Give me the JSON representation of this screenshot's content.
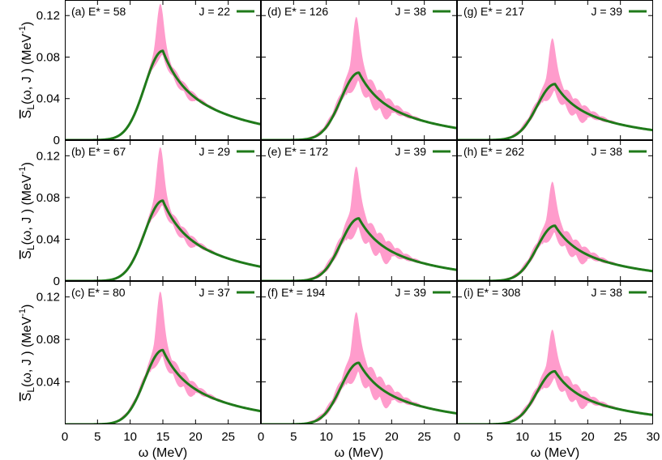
{
  "chart_data": {
    "type": "area",
    "title": "",
    "xlabel": "ω (MeV)",
    "ylabel_main": "S",
    "ylabel_sub": "L",
    "ylabel_args": "(ω, J )",
    "ylabel_unit": "(MeV",
    "ylabel_unit_sup": "-1",
    "ylabel_unit_close": ")",
    "xlim": [
      0,
      30
    ],
    "ylim": [
      0,
      0.135
    ],
    "x_ticks": [
      "0",
      "5",
      "10",
      "15",
      "20",
      "25",
      "30"
    ],
    "x_tick_values": [
      0,
      5,
      10,
      15,
      20,
      25,
      30
    ],
    "y_ticks": [
      "0",
      "0.04",
      "0.08",
      "0.12"
    ],
    "y_tick_values": [
      0,
      0.04,
      0.08,
      0.12
    ],
    "colors": {
      "mean_line": "#1f7a1a",
      "band": "#ff9ccc"
    },
    "panels": [
      {
        "id": "a",
        "label": "(a) E* = 58",
        "legend": "J = 22",
        "peak": 0.086,
        "band_top": 0.127,
        "spread": 0.006
      },
      {
        "id": "d",
        "label": "(d) E* = 126",
        "legend": "J = 38",
        "peak": 0.065,
        "band_top": 0.109,
        "spread": 0.012
      },
      {
        "id": "g",
        "label": "(g) E* = 217",
        "legend": "J = 39",
        "peak": 0.054,
        "band_top": 0.09,
        "spread": 0.01
      },
      {
        "id": "b",
        "label": "(b) E* = 67",
        "legend": "J = 29",
        "peak": 0.077,
        "band_top": 0.123,
        "spread": 0.007
      },
      {
        "id": "e",
        "label": "(e) E* = 172",
        "legend": "J = 39",
        "peak": 0.06,
        "band_top": 0.099,
        "spread": 0.013
      },
      {
        "id": "h",
        "label": "(h) E* = 262",
        "legend": "J = 38",
        "peak": 0.053,
        "band_top": 0.087,
        "spread": 0.01
      },
      {
        "id": "c",
        "label": "(c) E* = 80",
        "legend": "J = 37",
        "peak": 0.07,
        "band_top": 0.118,
        "spread": 0.009
      },
      {
        "id": "f",
        "label": "(f) E* = 194",
        "legend": "J = 39",
        "peak": 0.058,
        "band_top": 0.095,
        "spread": 0.013
      },
      {
        "id": "i",
        "label": "(i) E* = 308",
        "legend": "J = 38",
        "peak": 0.05,
        "band_top": 0.081,
        "spread": 0.01
      }
    ]
  }
}
